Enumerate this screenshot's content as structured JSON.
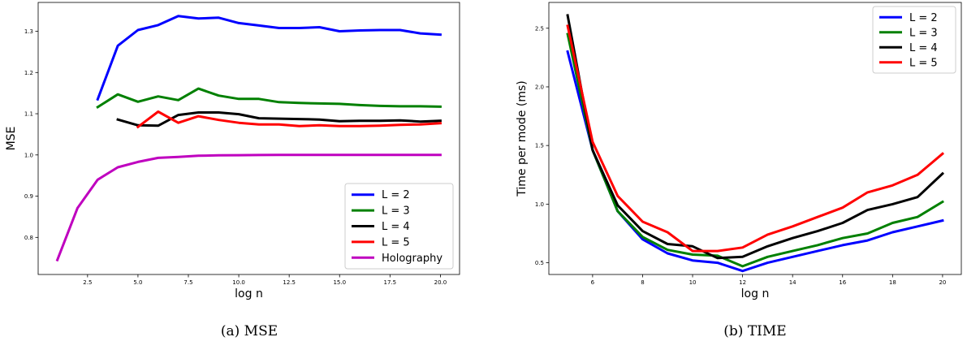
{
  "chart_data": [
    {
      "type": "line",
      "xlabel": "log n",
      "ylabel": "MSE",
      "xlim": [
        0.05,
        20.95
      ],
      "ylim": [
        0.71,
        1.37
      ],
      "xticks": [
        2.5,
        5.0,
        7.5,
        10.0,
        12.5,
        15.0,
        17.5,
        20.0
      ],
      "xtick_labels": [
        "2.5",
        "5.0",
        "7.5",
        "10.0",
        "12.5",
        "15.0",
        "17.5",
        "20.0"
      ],
      "yticks": [
        0.8,
        0.9,
        1.0,
        1.1,
        1.2,
        1.3
      ],
      "ytick_labels": [
        "0.8",
        "0.9",
        "1.0",
        "1.1",
        "1.2",
        "1.3"
      ],
      "legend_position": "lower-right",
      "caption": "(a)  MSE",
      "series": [
        {
          "name": "L = 2",
          "color": "#0000ff",
          "x": [
            3,
            4,
            5,
            6,
            7,
            8,
            9,
            10,
            11,
            12,
            13,
            14,
            15,
            16,
            17,
            18,
            19,
            20
          ],
          "y": [
            1.135,
            1.265,
            1.303,
            1.315,
            1.337,
            1.331,
            1.333,
            1.32,
            1.314,
            1.308,
            1.308,
            1.31,
            1.3,
            1.302,
            1.303,
            1.303,
            1.295,
            1.292
          ]
        },
        {
          "name": "L = 3",
          "color": "#008000",
          "x": [
            3,
            4,
            5,
            6,
            7,
            8,
            9,
            10,
            11,
            12,
            13,
            14,
            15,
            16,
            17,
            18,
            19,
            20
          ],
          "y": [
            1.116,
            1.147,
            1.129,
            1.142,
            1.133,
            1.161,
            1.144,
            1.136,
            1.136,
            1.128,
            1.126,
            1.125,
            1.124,
            1.121,
            1.119,
            1.118,
            1.118,
            1.117
          ]
        },
        {
          "name": "L = 4",
          "color": "#000000",
          "x": [
            4,
            5,
            6,
            7,
            8,
            9,
            10,
            11,
            12,
            13,
            14,
            15,
            16,
            17,
            18,
            19,
            20
          ],
          "y": [
            1.086,
            1.072,
            1.071,
            1.097,
            1.103,
            1.103,
            1.099,
            1.089,
            1.088,
            1.087,
            1.086,
            1.082,
            1.083,
            1.083,
            1.084,
            1.081,
            1.083
          ]
        },
        {
          "name": "L = 5",
          "color": "#ff0000",
          "x": [
            5,
            6,
            7,
            8,
            9,
            10,
            11,
            12,
            13,
            14,
            15,
            16,
            17,
            18,
            19,
            20
          ],
          "y": [
            1.068,
            1.105,
            1.078,
            1.094,
            1.085,
            1.078,
            1.074,
            1.074,
            1.07,
            1.072,
            1.07,
            1.07,
            1.071,
            1.073,
            1.074,
            1.077
          ]
        },
        {
          "name": "Holography",
          "color": "#bf00bf",
          "x": [
            1,
            2,
            3,
            4,
            5,
            6,
            7,
            8,
            9,
            10,
            11,
            12,
            13,
            14,
            15,
            16,
            17,
            18,
            19,
            20
          ],
          "y": [
            0.745,
            0.871,
            0.94,
            0.97,
            0.983,
            0.993,
            0.995,
            0.998,
            0.999,
            0.9995,
            0.9998,
            1.0,
            1.0,
            1.0,
            1.0,
            1.0,
            1.0,
            1.0,
            1.0,
            1.0
          ]
        }
      ]
    },
    {
      "type": "line",
      "xlabel": "log n",
      "ylabel": "Time per mode (ms)",
      "xlim": [
        4.25,
        20.75
      ],
      "ylim": [
        0.4,
        2.72
      ],
      "xticks": [
        6,
        8,
        10,
        12,
        14,
        16,
        18,
        20
      ],
      "xtick_labels": [
        "6",
        "8",
        "10",
        "12",
        "14",
        "16",
        "18",
        "20"
      ],
      "yticks": [
        0.5,
        1.0,
        1.5,
        2.0,
        2.5
      ],
      "ytick_labels": [
        "0.5",
        "1.0",
        "1.5",
        "2.0",
        "2.5"
      ],
      "legend_position": "upper-right",
      "caption": "(b)  TIME",
      "series": [
        {
          "name": "L = 2",
          "color": "#0000ff",
          "x": [
            5,
            6,
            7,
            8,
            9,
            10,
            11,
            12,
            13,
            14,
            15,
            16,
            17,
            18,
            19,
            20
          ],
          "y": [
            2.3,
            1.46,
            0.94,
            0.7,
            0.58,
            0.52,
            0.5,
            0.43,
            0.5,
            0.55,
            0.6,
            0.65,
            0.69,
            0.76,
            0.81,
            0.86
          ]
        },
        {
          "name": "L = 3",
          "color": "#008000",
          "x": [
            5,
            6,
            7,
            8,
            9,
            10,
            11,
            12,
            13,
            14,
            15,
            16,
            17,
            18,
            19,
            20
          ],
          "y": [
            2.45,
            1.46,
            0.94,
            0.72,
            0.61,
            0.57,
            0.56,
            0.47,
            0.55,
            0.6,
            0.65,
            0.71,
            0.75,
            0.84,
            0.89,
            1.02
          ]
        },
        {
          "name": "L = 4",
          "color": "#000000",
          "x": [
            5,
            6,
            7,
            8,
            9,
            10,
            11,
            12,
            13,
            14,
            15,
            16,
            17,
            18,
            19,
            20
          ],
          "y": [
            2.61,
            1.46,
            0.99,
            0.77,
            0.66,
            0.64,
            0.54,
            0.55,
            0.64,
            0.71,
            0.77,
            0.84,
            0.95,
            1.0,
            1.06,
            1.26
          ]
        },
        {
          "name": "L = 5",
          "color": "#ff0000",
          "x": [
            5,
            6,
            7,
            8,
            9,
            10,
            11,
            12,
            13,
            14,
            15,
            16,
            17,
            18,
            19,
            20
          ],
          "y": [
            2.52,
            1.53,
            1.07,
            0.85,
            0.76,
            0.6,
            0.6,
            0.63,
            0.74,
            0.81,
            0.89,
            0.97,
            1.1,
            1.16,
            1.25,
            1.43
          ]
        }
      ]
    }
  ]
}
